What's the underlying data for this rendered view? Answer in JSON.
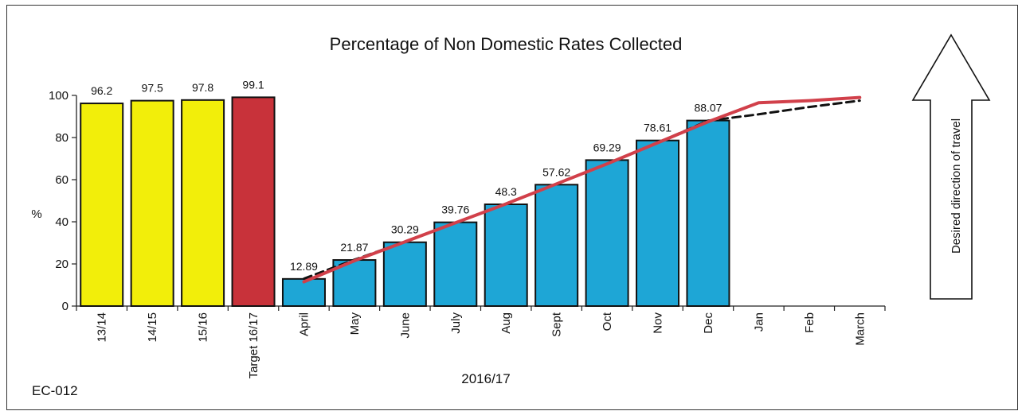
{
  "chart_data": {
    "type": "bar",
    "title": "Percentage of Non Domestic Rates Collected",
    "xlabel": "2016/17",
    "ylabel": "%",
    "ylim": [
      0,
      100
    ],
    "yticks": [
      0,
      20,
      40,
      60,
      80,
      100
    ],
    "grid": false,
    "categories": [
      "13/14",
      "14/15",
      "15/16",
      "Target 16/17",
      "April",
      "May",
      "June",
      "July",
      "Aug",
      "Sept",
      "Oct",
      "Nov",
      "Dec",
      "Jan",
      "Feb",
      "March"
    ],
    "bars": [
      {
        "category": "13/14",
        "value": 96.2,
        "label": "96.2",
        "color": "#f2ee0a"
      },
      {
        "category": "14/15",
        "value": 97.5,
        "label": "97.5",
        "color": "#f2ee0a"
      },
      {
        "category": "15/16",
        "value": 97.8,
        "label": "97.8",
        "color": "#f2ee0a"
      },
      {
        "category": "Target 16/17",
        "value": 99.1,
        "label": "99.1",
        "color": "#c8323a"
      },
      {
        "category": "April",
        "value": 12.89,
        "label": "12.89",
        "color": "#1ea6d6"
      },
      {
        "category": "May",
        "value": 21.87,
        "label": "21.87",
        "color": "#1ea6d6"
      },
      {
        "category": "June",
        "value": 30.29,
        "label": "30.29",
        "color": "#1ea6d6"
      },
      {
        "category": "July",
        "value": 39.76,
        "label": "39.76",
        "color": "#1ea6d6"
      },
      {
        "category": "Aug",
        "value": 48.3,
        "label": "48.3",
        "color": "#1ea6d6"
      },
      {
        "category": "Sept",
        "value": 57.62,
        "label": "57.62",
        "color": "#1ea6d6"
      },
      {
        "category": "Oct",
        "value": 69.29,
        "label": "69.29",
        "color": "#1ea6d6"
      },
      {
        "category": "Nov",
        "value": 78.61,
        "label": "78.61",
        "color": "#1ea6d6"
      },
      {
        "category": "Dec",
        "value": 88.07,
        "label": "88.07",
        "color": "#1ea6d6"
      }
    ],
    "lines": [
      {
        "style": "solid",
        "color": "#d1404a",
        "x": [
          "April",
          "May",
          "June",
          "July",
          "Aug",
          "Sept",
          "Oct",
          "Nov",
          "Dec",
          "Jan",
          "Feb",
          "March"
        ],
        "values": [
          11.5,
          21.5,
          30.5,
          39.5,
          48.5,
          58.0,
          67.5,
          77.5,
          87.5,
          96.5,
          97.5,
          99.0
        ]
      },
      {
        "style": "dashed",
        "color": "#111111",
        "x": [
          "April",
          "May",
          "June",
          "July",
          "Aug",
          "Sept",
          "Oct",
          "Nov",
          "Dec",
          "Jan",
          "Feb",
          "March"
        ],
        "values": [
          13.0,
          22.0,
          30.5,
          39.5,
          48.5,
          58.0,
          67.5,
          77.5,
          88.0,
          91.0,
          94.5,
          97.5
        ]
      }
    ]
  },
  "arrow_label": "Desired direction of travel",
  "doc_code": "EC-012"
}
